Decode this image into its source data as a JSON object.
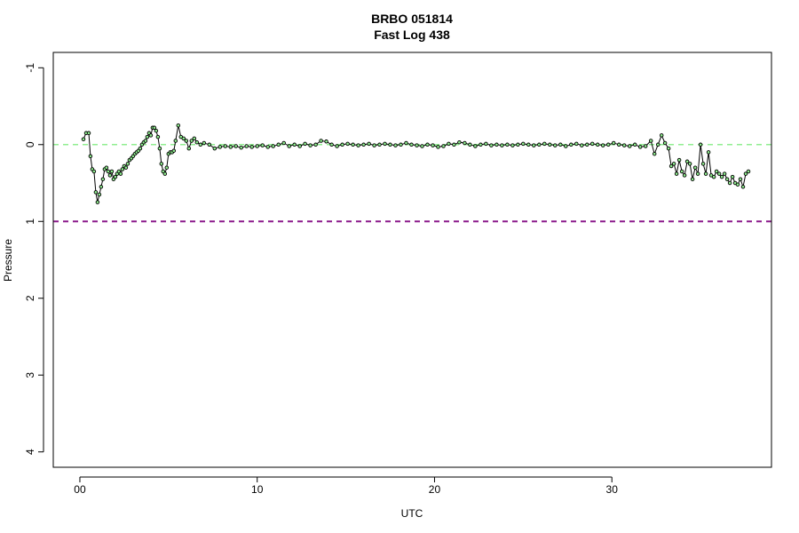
{
  "chart_data": {
    "type": "line",
    "title": "BRBO 051814",
    "subtitle": "Fast Log 438",
    "xlabel": "UTC",
    "ylabel": "Pressure",
    "xlim": [
      -1.5,
      39
    ],
    "ylim": [
      4.2,
      -1.2
    ],
    "y_axis_reversed": true,
    "x_ticks": [
      {
        "value": 0,
        "label": "00"
      },
      {
        "value": 10,
        "label": "10"
      },
      {
        "value": 20,
        "label": "20"
      },
      {
        "value": 30,
        "label": "30"
      }
    ],
    "y_ticks": [
      {
        "value": -1,
        "label": "-1"
      },
      {
        "value": 0,
        "label": "0"
      },
      {
        "value": 1,
        "label": "1"
      },
      {
        "value": 2,
        "label": "2"
      },
      {
        "value": 3,
        "label": "3"
      },
      {
        "value": 4,
        "label": "4"
      }
    ],
    "grid": false,
    "reference_lines": [
      {
        "y": 0,
        "color": "#90ee90",
        "style": "dashed"
      },
      {
        "y": 1,
        "color": "#8b1a8b",
        "style": "dashed"
      }
    ],
    "series": [
      {
        "line_color": "#000000",
        "marker": "open-circle",
        "marker_fill": "#90ee90",
        "x": [
          0.2,
          0.35,
          0.5,
          0.6,
          0.7,
          0.8,
          0.9,
          1.0,
          1.1,
          1.2,
          1.3,
          1.4,
          1.5,
          1.6,
          1.7,
          1.8,
          1.9,
          2.0,
          2.1,
          2.2,
          2.3,
          2.4,
          2.5,
          2.6,
          2.7,
          2.8,
          2.9,
          3.0,
          3.1,
          3.2,
          3.3,
          3.4,
          3.5,
          3.6,
          3.7,
          3.8,
          3.9,
          4.0,
          4.1,
          4.2,
          4.3,
          4.4,
          4.5,
          4.6,
          4.7,
          4.8,
          4.9,
          5.0,
          5.1,
          5.2,
          5.3,
          5.4,
          5.55,
          5.7,
          5.85,
          6.0,
          6.15,
          6.3,
          6.45,
          6.6,
          6.8,
          7.0,
          7.3,
          7.6,
          7.9,
          8.2,
          8.5,
          8.8,
          9.1,
          9.4,
          9.7,
          10.0,
          10.3,
          10.6,
          10.9,
          11.2,
          11.5,
          11.8,
          12.1,
          12.4,
          12.7,
          13.0,
          13.3,
          13.6,
          13.9,
          14.2,
          14.5,
          14.8,
          15.1,
          15.4,
          15.7,
          16.0,
          16.3,
          16.6,
          16.9,
          17.2,
          17.5,
          17.8,
          18.1,
          18.4,
          18.7,
          19.0,
          19.3,
          19.6,
          19.9,
          20.2,
          20.5,
          20.8,
          21.1,
          21.4,
          21.7,
          22.0,
          22.3,
          22.6,
          22.9,
          23.2,
          23.5,
          23.8,
          24.1,
          24.4,
          24.7,
          25.0,
          25.3,
          25.6,
          25.9,
          26.2,
          26.5,
          26.8,
          27.1,
          27.4,
          27.7,
          28.0,
          28.3,
          28.6,
          28.9,
          29.2,
          29.5,
          29.8,
          30.1,
          30.4,
          30.7,
          31.0,
          31.3,
          31.6,
          31.9,
          32.2,
          32.4,
          32.6,
          32.8,
          33.0,
          33.2,
          33.35,
          33.5,
          33.65,
          33.8,
          33.95,
          34.1,
          34.25,
          34.4,
          34.55,
          34.7,
          34.85,
          35.0,
          35.15,
          35.3,
          35.45,
          35.6,
          35.75,
          35.9,
          36.05,
          36.2,
          36.35,
          36.5,
          36.65,
          36.8,
          36.95,
          37.1,
          37.25,
          37.4,
          37.55,
          37.7
        ],
        "y": [
          -0.07,
          -0.15,
          -0.15,
          0.15,
          0.32,
          0.35,
          0.62,
          0.75,
          0.65,
          0.55,
          0.45,
          0.32,
          0.3,
          0.35,
          0.4,
          0.35,
          0.45,
          0.42,
          0.38,
          0.35,
          0.38,
          0.32,
          0.28,
          0.3,
          0.25,
          0.2,
          0.18,
          0.15,
          0.12,
          0.1,
          0.08,
          0.05,
          0.0,
          -0.03,
          -0.05,
          -0.1,
          -0.15,
          -0.12,
          -0.22,
          -0.22,
          -0.18,
          -0.1,
          0.05,
          0.25,
          0.35,
          0.38,
          0.3,
          0.12,
          0.1,
          0.1,
          0.08,
          -0.05,
          -0.25,
          -0.1,
          -0.08,
          -0.05,
          0.05,
          -0.05,
          -0.08,
          -0.03,
          0.0,
          -0.02,
          0.0,
          0.05,
          0.03,
          0.02,
          0.03,
          0.02,
          0.04,
          0.02,
          0.03,
          0.02,
          0.01,
          0.03,
          0.02,
          0.0,
          -0.02,
          0.02,
          0.0,
          0.02,
          -0.01,
          0.01,
          0.0,
          -0.05,
          -0.04,
          0.0,
          0.02,
          0.0,
          -0.01,
          0.0,
          0.01,
          0.0,
          -0.01,
          0.01,
          0.0,
          -0.01,
          0.0,
          0.01,
          0.0,
          -0.02,
          0.0,
          0.01,
          0.02,
          0.0,
          0.01,
          0.03,
          0.02,
          -0.01,
          0.0,
          -0.03,
          -0.02,
          0.0,
          0.02,
          0.0,
          -0.01,
          0.01,
          0.0,
          0.01,
          0.0,
          0.01,
          0.0,
          -0.01,
          0.0,
          0.01,
          0.0,
          -0.01,
          0.0,
          0.01,
          0.0,
          0.02,
          0.0,
          -0.01,
          0.01,
          0.0,
          -0.01,
          0.0,
          0.01,
          0.0,
          -0.02,
          0.0,
          0.01,
          0.02,
          0.0,
          0.03,
          0.02,
          -0.05,
          0.12,
          0.0,
          -0.12,
          -0.02,
          0.05,
          0.28,
          0.25,
          0.38,
          0.2,
          0.35,
          0.4,
          0.22,
          0.25,
          0.45,
          0.3,
          0.38,
          0.0,
          0.25,
          0.38,
          0.1,
          0.4,
          0.42,
          0.35,
          0.38,
          0.42,
          0.38,
          0.45,
          0.5,
          0.42,
          0.5,
          0.52,
          0.45,
          0.55,
          0.38,
          0.35
        ]
      }
    ]
  }
}
